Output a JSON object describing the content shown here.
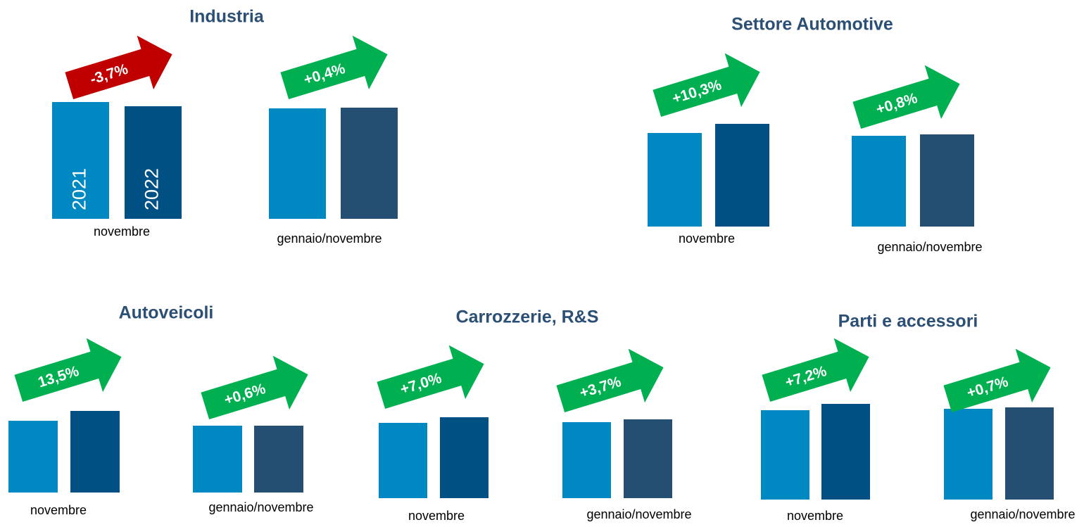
{
  "chart_data": [
    {
      "type": "bar",
      "title": "Industria",
      "categories": [
        "novembre",
        "gennaio/novembre"
      ],
      "series": [
        {
          "name": "2021",
          "colors": [
            "#0088c2",
            "#0088c2"
          ],
          "values": [
            166,
            157
          ]
        },
        {
          "name": "2022",
          "colors": [
            "#005083",
            "#254f72"
          ],
          "values": [
            160,
            158
          ]
        }
      ],
      "changes": [
        -3.7,
        0.4
      ],
      "change_labels": [
        "-3,7%",
        "+0,4%"
      ],
      "change_colors": [
        "#c00000",
        "#00b050"
      ]
    },
    {
      "type": "bar",
      "title": "Settore Automotive",
      "categories": [
        "novembre",
        "gennaio/novembre"
      ],
      "series": [
        {
          "colors": [
            "#0088c2",
            "#0088c2"
          ],
          "values": [
            133,
            129
          ]
        },
        {
          "colors": [
            "#005083",
            "#254f72"
          ],
          "values": [
            146,
            131
          ]
        }
      ],
      "changes": [
        10.3,
        0.8
      ],
      "change_labels": [
        "+10,3%",
        "+0,8%"
      ],
      "change_colors": [
        "#00b050",
        "#00b050"
      ]
    },
    {
      "type": "bar",
      "title": "Autoveicoli",
      "categories": [
        "novembre",
        "gennaio/novembre"
      ],
      "series": [
        {
          "colors": [
            "#0088c2",
            "#0088c2"
          ],
          "values": [
            102,
            95
          ]
        },
        {
          "colors": [
            "#005083",
            "#254f72"
          ],
          "values": [
            116,
            95
          ]
        }
      ],
      "changes": [
        13.5,
        0.6
      ],
      "change_labels": [
        "13,5%",
        "+0,6%"
      ],
      "change_colors": [
        "#00b050",
        "#00b050"
      ]
    },
    {
      "type": "bar",
      "title": "Carrozzerie, R&S",
      "categories": [
        "novembre",
        "gennaio/novembre"
      ],
      "series": [
        {
          "colors": [
            "#0088c2",
            "#0088c2"
          ],
          "values": [
            107,
            108
          ]
        },
        {
          "colors": [
            "#005083",
            "#254f72"
          ],
          "values": [
            115,
            112
          ]
        }
      ],
      "changes": [
        7.0,
        3.7
      ],
      "change_labels": [
        "+7,0%",
        "+3,7%"
      ],
      "change_colors": [
        "#00b050",
        "#00b050"
      ]
    },
    {
      "type": "bar",
      "title": "Parti e accessori",
      "categories": [
        "novembre",
        "gennaio/novembre"
      ],
      "series": [
        {
          "colors": [
            "#0088c2",
            "#0088c2"
          ],
          "values": [
            127,
            129
          ]
        },
        {
          "colors": [
            "#005083",
            "#254f72"
          ],
          "values": [
            136,
            131
          ]
        }
      ],
      "changes": [
        7.2,
        0.7
      ],
      "change_labels": [
        "+7,2%",
        "+0,7%"
      ],
      "change_colors": [
        "#00b050",
        "#00b050"
      ]
    }
  ]
}
